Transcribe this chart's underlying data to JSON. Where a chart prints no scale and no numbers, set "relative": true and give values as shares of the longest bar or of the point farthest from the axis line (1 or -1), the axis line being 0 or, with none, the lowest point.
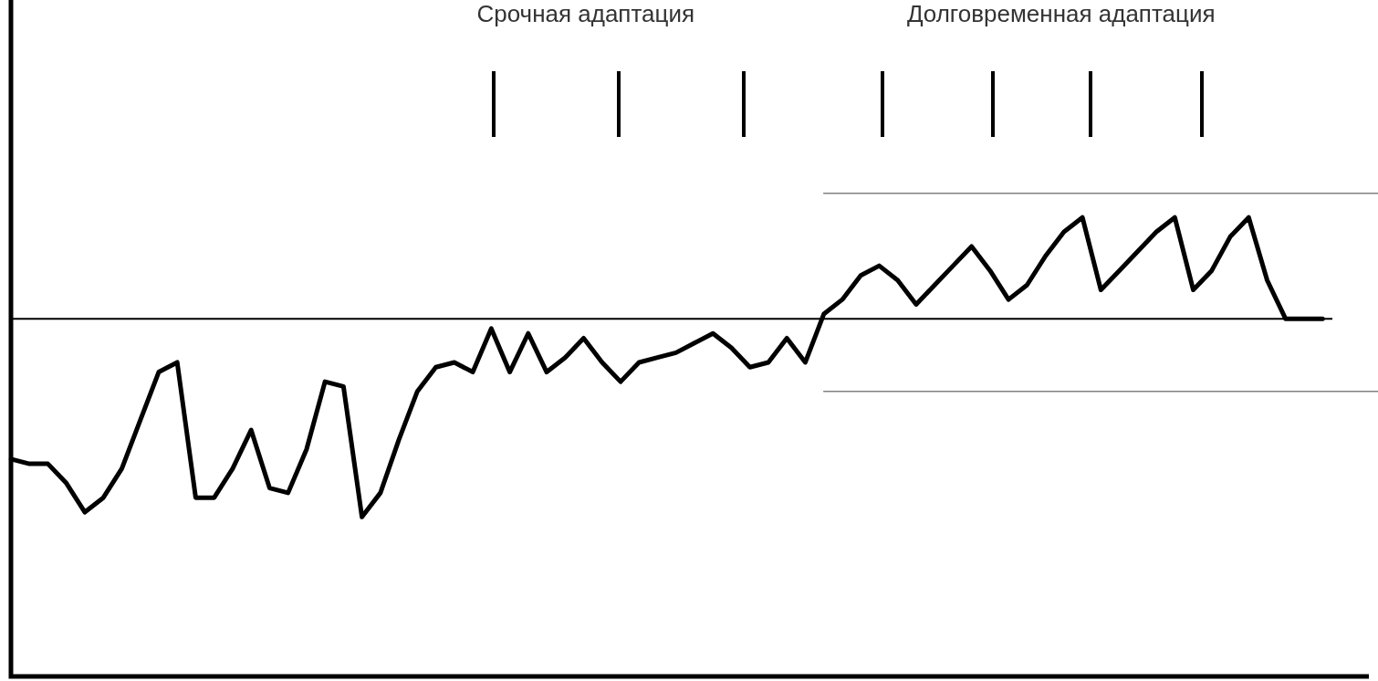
{
  "chart_data": {
    "type": "line",
    "relative": true,
    "legend": false,
    "tick_labels": false,
    "marker": "none",
    "line_style": "solid",
    "categories": [
      null,
      null,
      null,
      null,
      null,
      null,
      null,
      null,
      null,
      null,
      null,
      null,
      null,
      null,
      null,
      null,
      null,
      null,
      null,
      null,
      null,
      null,
      null,
      null,
      null,
      null,
      null,
      null,
      null,
      null,
      null,
      null,
      null,
      null,
      null,
      null,
      null,
      null,
      null,
      null,
      null,
      null,
      null,
      null,
      null,
      null,
      null,
      null,
      null,
      null,
      null,
      null,
      null,
      null,
      null,
      null,
      null,
      null,
      null,
      null,
      null,
      null,
      null,
      null,
      null,
      null,
      null,
      null,
      null,
      null,
      null,
      null,
      null,
      null,
      null
    ],
    "series": [
      {
        "color": "#000000",
        "values": [
          0.45,
          0.44,
          0.44,
          0.4,
          0.34,
          0.37,
          0.43,
          0.53,
          0.63,
          0.65,
          0.37,
          0.37,
          0.43,
          0.51,
          0.39,
          0.38,
          0.47,
          0.61,
          0.6,
          0.33,
          0.38,
          0.49,
          0.59,
          0.64,
          0.65,
          0.63,
          0.72,
          0.63,
          0.71,
          0.63,
          0.66,
          0.7,
          0.65,
          0.61,
          0.65,
          0.66,
          0.67,
          0.69,
          0.71,
          0.68,
          0.64,
          0.65,
          0.7,
          0.65,
          0.75,
          0.78,
          0.83,
          0.85,
          0.82,
          0.77,
          0.81,
          0.85,
          0.89,
          0.84,
          0.78,
          0.81,
          0.87,
          0.92,
          0.95,
          0.8,
          0.84,
          0.88,
          0.92,
          0.95,
          0.8,
          0.84,
          0.91,
          0.95,
          0.82,
          0.74,
          0.74,
          0.74,
          null,
          null,
          null
        ]
      },
      {
        "color": "#808080",
        "values": [
          null,
          null,
          null,
          null,
          null,
          null,
          null,
          null,
          null,
          null,
          null,
          null,
          null,
          null,
          null,
          null,
          null,
          null,
          null,
          null,
          null,
          null,
          null,
          null,
          null,
          null,
          null,
          null,
          null,
          null,
          null,
          null,
          null,
          null,
          null,
          null,
          null,
          null,
          null,
          null,
          null,
          null,
          null,
          null,
          1,
          1,
          1,
          1,
          1,
          1,
          1,
          1,
          1,
          1,
          1,
          1,
          1,
          1,
          1,
          1,
          1,
          1,
          1,
          1,
          1,
          1,
          1,
          1,
          1,
          1,
          1,
          1,
          1,
          1,
          1
        ]
      },
      {
        "color": "#808080",
        "values": [
          null,
          null,
          null,
          null,
          null,
          null,
          null,
          null,
          null,
          null,
          null,
          null,
          null,
          null,
          null,
          null,
          null,
          null,
          null,
          null,
          null,
          null,
          null,
          null,
          null,
          null,
          null,
          null,
          null,
          null,
          null,
          null,
          null,
          null,
          null,
          null,
          null,
          null,
          null,
          null,
          null,
          null,
          null,
          null,
          0.59,
          0.59,
          0.59,
          0.59,
          0.59,
          0.59,
          0.59,
          0.59,
          0.59,
          0.59,
          0.59,
          0.59,
          0.59,
          0.59,
          0.59,
          0.59,
          0.59,
          0.59,
          0.59,
          0.59,
          0.59,
          0.59,
          0.59,
          0.59,
          0.59,
          0.59,
          0.59,
          0.59,
          0.59,
          0.59,
          0.59
        ]
      }
    ],
    "ref_lines": [
      {
        "axis": "y",
        "value": 0.74,
        "color": "#000000"
      }
    ],
    "annotations": [
      "Срочная адаптация",
      "Долговременная адаптация"
    ]
  }
}
